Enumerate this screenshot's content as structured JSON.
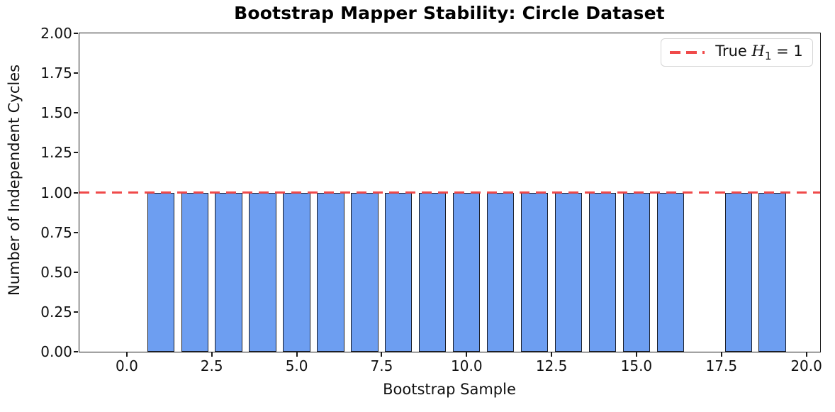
{
  "figure": {
    "title": "Bootstrap Mapper Stability: Circle Dataset",
    "xlabel": "Bootstrap Sample",
    "ylabel": "Number of Independent Cycles"
  },
  "legend": {
    "entry_prefix": "True ",
    "entry_var": "H",
    "entry_sub": "1",
    "entry_suffix": " = 1"
  },
  "colors": {
    "bar_fill": "#6d9ef1",
    "bar_edge": "#1b1f2a",
    "ref_line": "#ee3a3a",
    "spine": "#1a1a1a",
    "legend_border": "#d5d5d5"
  },
  "chart_data": {
    "type": "bar",
    "title": "Bootstrap Mapper Stability: Circle Dataset",
    "xlabel": "Bootstrap Sample",
    "ylabel": "Number of Independent Cycles",
    "x": [
      0,
      1,
      2,
      3,
      4,
      5,
      6,
      7,
      8,
      9,
      10,
      11,
      12,
      13,
      14,
      15,
      16,
      17,
      18,
      19
    ],
    "values": [
      0,
      1,
      1,
      1,
      1,
      1,
      1,
      1,
      1,
      1,
      1,
      1,
      1,
      1,
      1,
      1,
      1,
      0,
      1,
      1
    ],
    "bar_width": 0.8,
    "xlim": [
      -1.4,
      20.4
    ],
    "ylim": [
      0,
      2
    ],
    "x_ticks": [
      {
        "value": 0,
        "label": "0.0"
      },
      {
        "value": 2.5,
        "label": "2.5"
      },
      {
        "value": 5,
        "label": "5.0"
      },
      {
        "value": 7.5,
        "label": "7.5"
      },
      {
        "value": 10,
        "label": "10.0"
      },
      {
        "value": 12.5,
        "label": "12.5"
      },
      {
        "value": 15,
        "label": "15.0"
      },
      {
        "value": 17.5,
        "label": "17.5"
      },
      {
        "value": 20,
        "label": "20.0"
      }
    ],
    "y_ticks": [
      {
        "value": 0,
        "label": "0.00"
      },
      {
        "value": 0.25,
        "label": "0.25"
      },
      {
        "value": 0.5,
        "label": "0.50"
      },
      {
        "value": 0.75,
        "label": "0.75"
      },
      {
        "value": 1,
        "label": "1.00"
      },
      {
        "value": 1.25,
        "label": "1.25"
      },
      {
        "value": 1.5,
        "label": "1.50"
      },
      {
        "value": 1.75,
        "label": "1.75"
      },
      {
        "value": 2,
        "label": "2.00"
      }
    ],
    "reference_line": {
      "y": 1,
      "style": "dashed",
      "color": "#ee3a3a",
      "label": "True H_1 = 1"
    },
    "legend_position": "upper right",
    "grid": false
  }
}
